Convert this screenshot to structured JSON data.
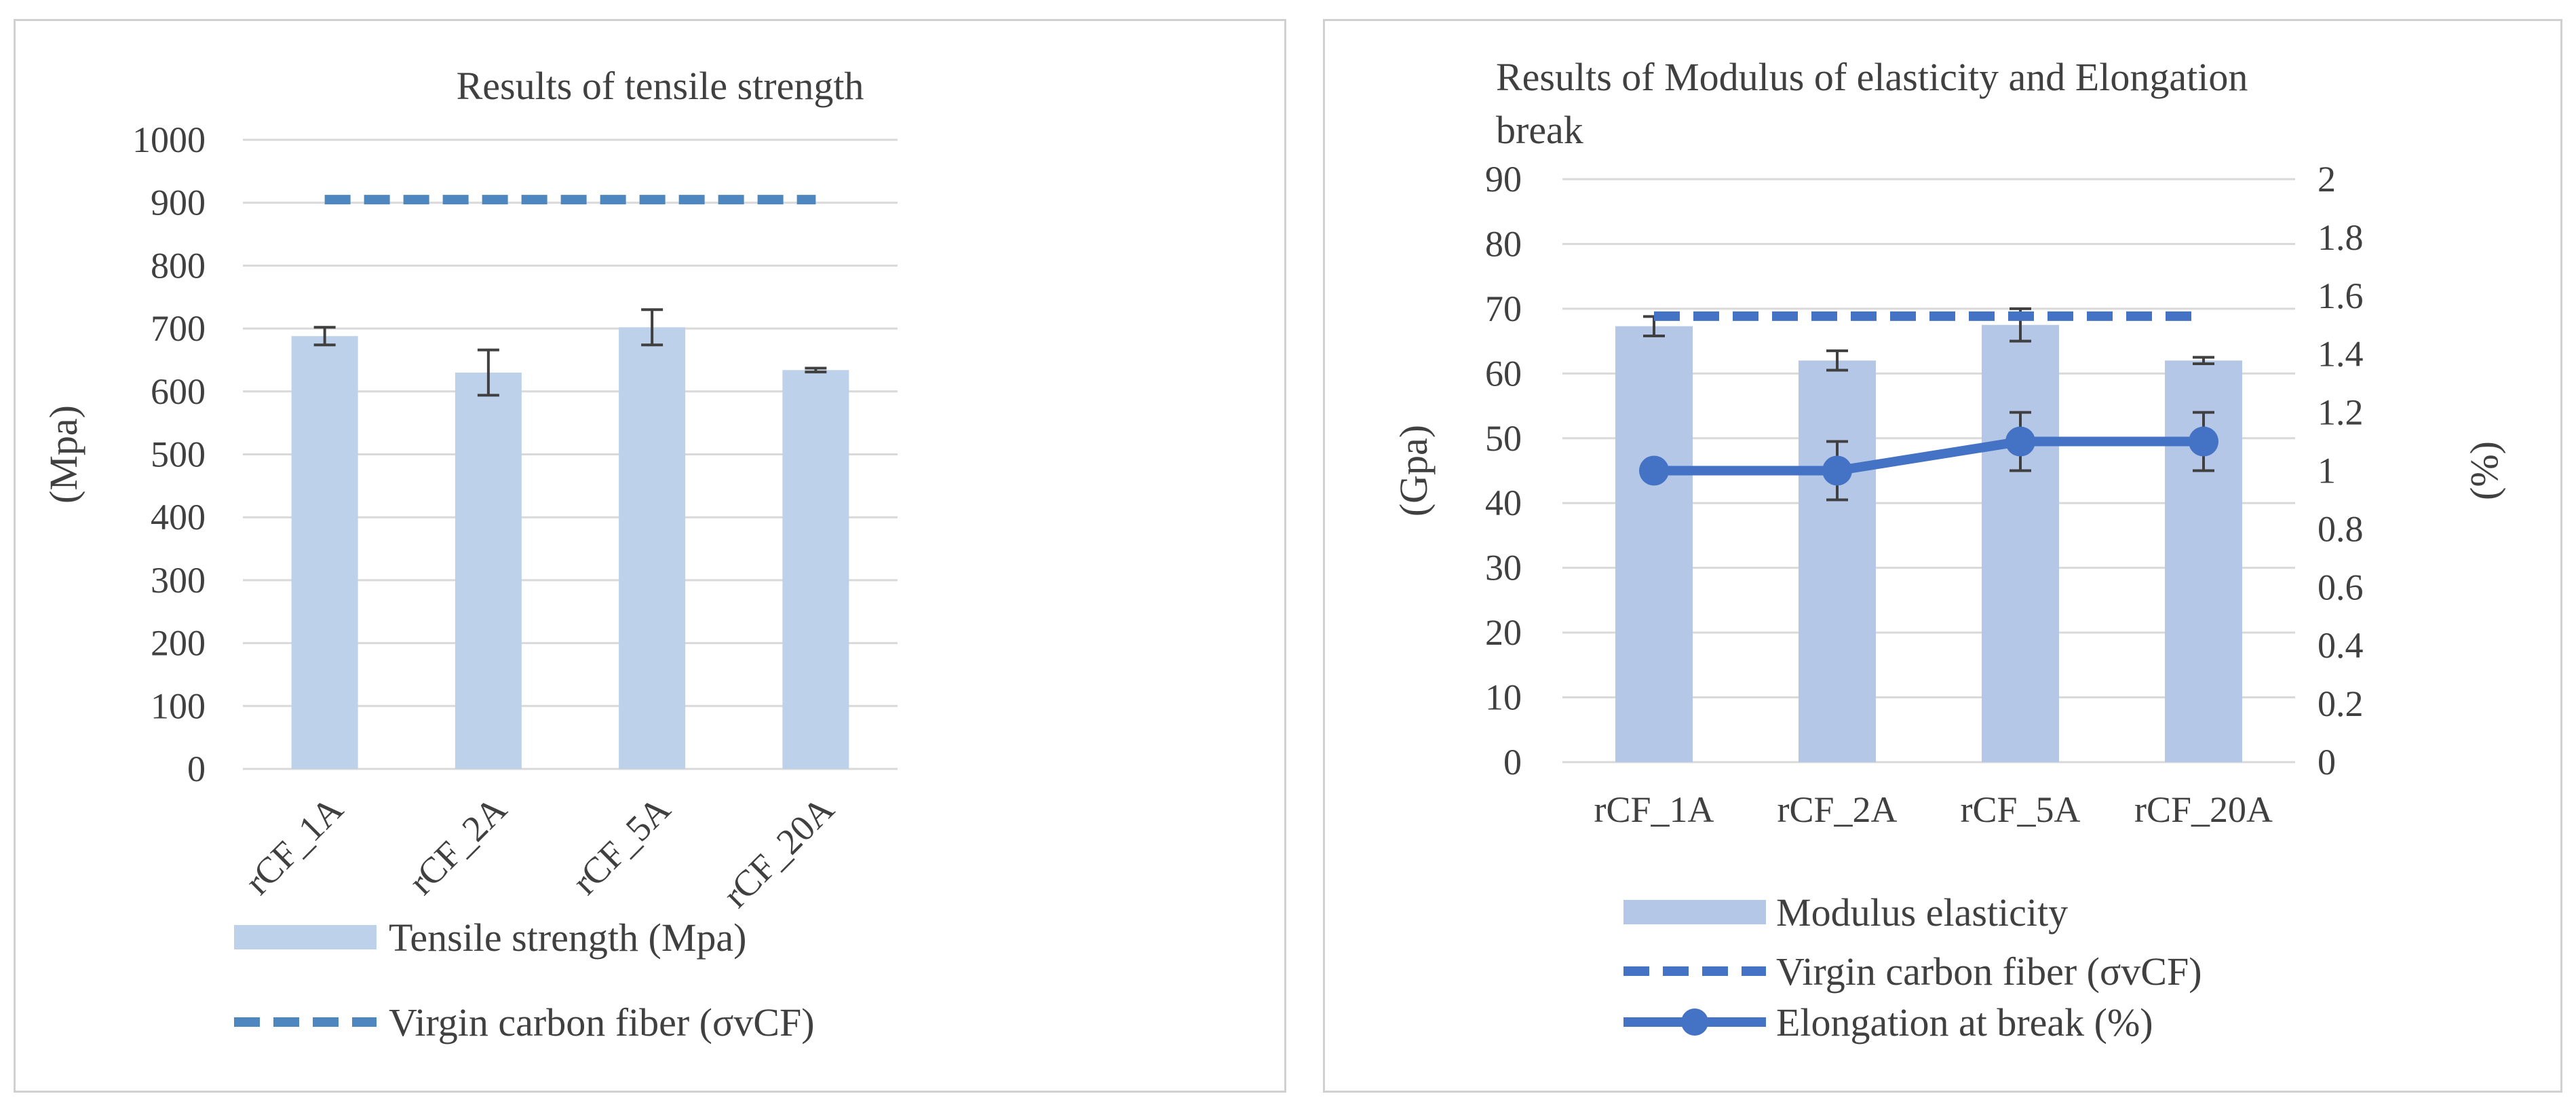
{
  "chart_data": [
    {
      "type": "bar",
      "title": "Results of tensile strength",
      "xlabel": "",
      "ylabel": "(Mpa)",
      "categories": [
        "rCF_1A",
        "rCF_2A",
        "rCF_5A",
        "rCF_20A"
      ],
      "ylim": [
        0,
        1000
      ],
      "yticks": [
        "0",
        "100",
        "200",
        "300",
        "400",
        "500",
        "600",
        "700",
        "800",
        "900",
        "1000"
      ],
      "series": [
        {
          "name": "Tensile strength (Mpa)",
          "kind": "bar",
          "values": [
            688,
            630,
            702,
            634
          ],
          "errors": [
            14,
            36,
            28,
            3
          ]
        },
        {
          "name": "Virgin carbon fiber (σvCF)",
          "kind": "dashed-line",
          "values": [
            905,
            905,
            905,
            905
          ]
        }
      ],
      "colors": {
        "bar": "#bdd1ea",
        "line": "#4e86bf",
        "grid": "#d9d9d9",
        "error": "#404040"
      },
      "legend_position": "bottom",
      "grid": true
    },
    {
      "type": "bar",
      "title": "Results of Modulus of elasticity and Elongation break",
      "title_lines": [
        "Results of Modulus of elasticity and Elongation",
        "break"
      ],
      "xlabel": "",
      "ylabel": "(Gpa)",
      "y2label": "(%)",
      "categories": [
        "rCF_1A",
        "rCF_2A",
        "rCF_5A",
        "rCF_20A"
      ],
      "ylim": [
        0,
        90
      ],
      "y2lim": [
        0,
        2
      ],
      "yticks": [
        "0",
        "10",
        "20",
        "30",
        "40",
        "50",
        "60",
        "70",
        "80",
        "90"
      ],
      "y2ticks": [
        "0",
        "0.2",
        "0.4",
        "0.6",
        "0.8",
        "1",
        "1.2",
        "1.4",
        "1.6",
        "1.8",
        "2"
      ],
      "series": [
        {
          "name": "Modulus elasticity",
          "kind": "bar",
          "axis": "left",
          "values": [
            67.3,
            62,
            67.5,
            62
          ],
          "errors": [
            1.5,
            1.5,
            2.5,
            0.5
          ]
        },
        {
          "name": "Virgin carbon fiber (σvCF)",
          "kind": "dashed-line",
          "axis": "right",
          "values": [
            1.53,
            1.53,
            1.53,
            1.53
          ]
        },
        {
          "name": "Elongation at break (%)",
          "kind": "line-marker",
          "axis": "right",
          "values": [
            1.0,
            1.0,
            1.1,
            1.1
          ],
          "errors": [
            0,
            0.1,
            0.1,
            0.1
          ]
        }
      ],
      "colors": {
        "bar": "#b4c7e7",
        "line": "#4472c4",
        "grid": "#d9d9d9",
        "error": "#404040"
      },
      "legend_position": "bottom",
      "grid": true
    }
  ]
}
